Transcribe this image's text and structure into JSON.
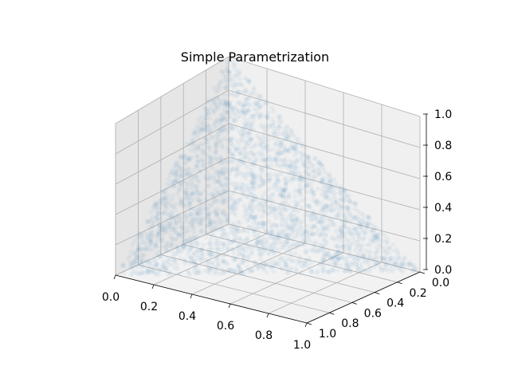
{
  "chart_data": {
    "type": "scatter",
    "title": "Simple Parametrization",
    "projection": "3d",
    "xlim": [
      0.0,
      1.0
    ],
    "ylim": [
      0.0,
      1.0
    ],
    "zlim": [
      0.0,
      1.0
    ],
    "x_ticks": [
      "0.0",
      "0.2",
      "0.4",
      "0.6",
      "0.8",
      "1.0"
    ],
    "y_ticks": [
      "0.0",
      "0.2",
      "0.4",
      "0.6",
      "0.8",
      "1.0"
    ],
    "z_ticks": [
      "0.0",
      "0.2",
      "0.4",
      "0.6",
      "0.8",
      "1.0"
    ],
    "grid": true,
    "surface": {
      "vertices": [
        {
          "x": 0.0,
          "y": 1.0,
          "z": 0.0
        },
        {
          "x": 1.0,
          "y": 0.0,
          "z": 0.0
        },
        {
          "x": 0.0,
          "y": 0.0,
          "z": 1.0
        }
      ],
      "constraint": "x + y + z = 1"
    },
    "marker_color": "#1f77b4",
    "marker_alpha": 0.05
  }
}
